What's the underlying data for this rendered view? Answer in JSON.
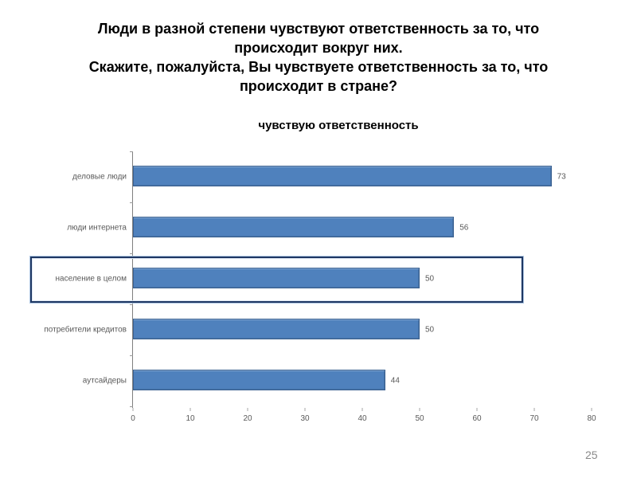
{
  "slide": {
    "title_lines": [
      "Люди в разной степени чувствуют ответственность за то, что",
      "происходит вокруг них.",
      "Скажите, пожалуйста, Вы чувствуете ответственность за то, что",
      "происходит в стране?"
    ],
    "page_number": "25"
  },
  "chart_data": {
    "type": "bar",
    "orientation": "horizontal",
    "title": "чувствую ответственность",
    "categories": [
      "деловые люди",
      "люди интернета",
      "население в целом",
      "потребители кредитов",
      "аутсайдеры"
    ],
    "values": [
      73,
      56,
      50,
      50,
      44
    ],
    "highlighted_category": "население в целом",
    "highlighted_index": 2,
    "xlabel": "",
    "ylabel": "",
    "xlim": [
      0,
      80
    ],
    "x_ticks": [
      0,
      10,
      20,
      30,
      40,
      50,
      60,
      70,
      80
    ],
    "grid": false,
    "legend": false,
    "colors": {
      "bar": "#4f81bd",
      "bar_border": "#3a6191",
      "highlight_border": "#1f3864",
      "axis": "#808080",
      "labels": "#595959"
    }
  }
}
